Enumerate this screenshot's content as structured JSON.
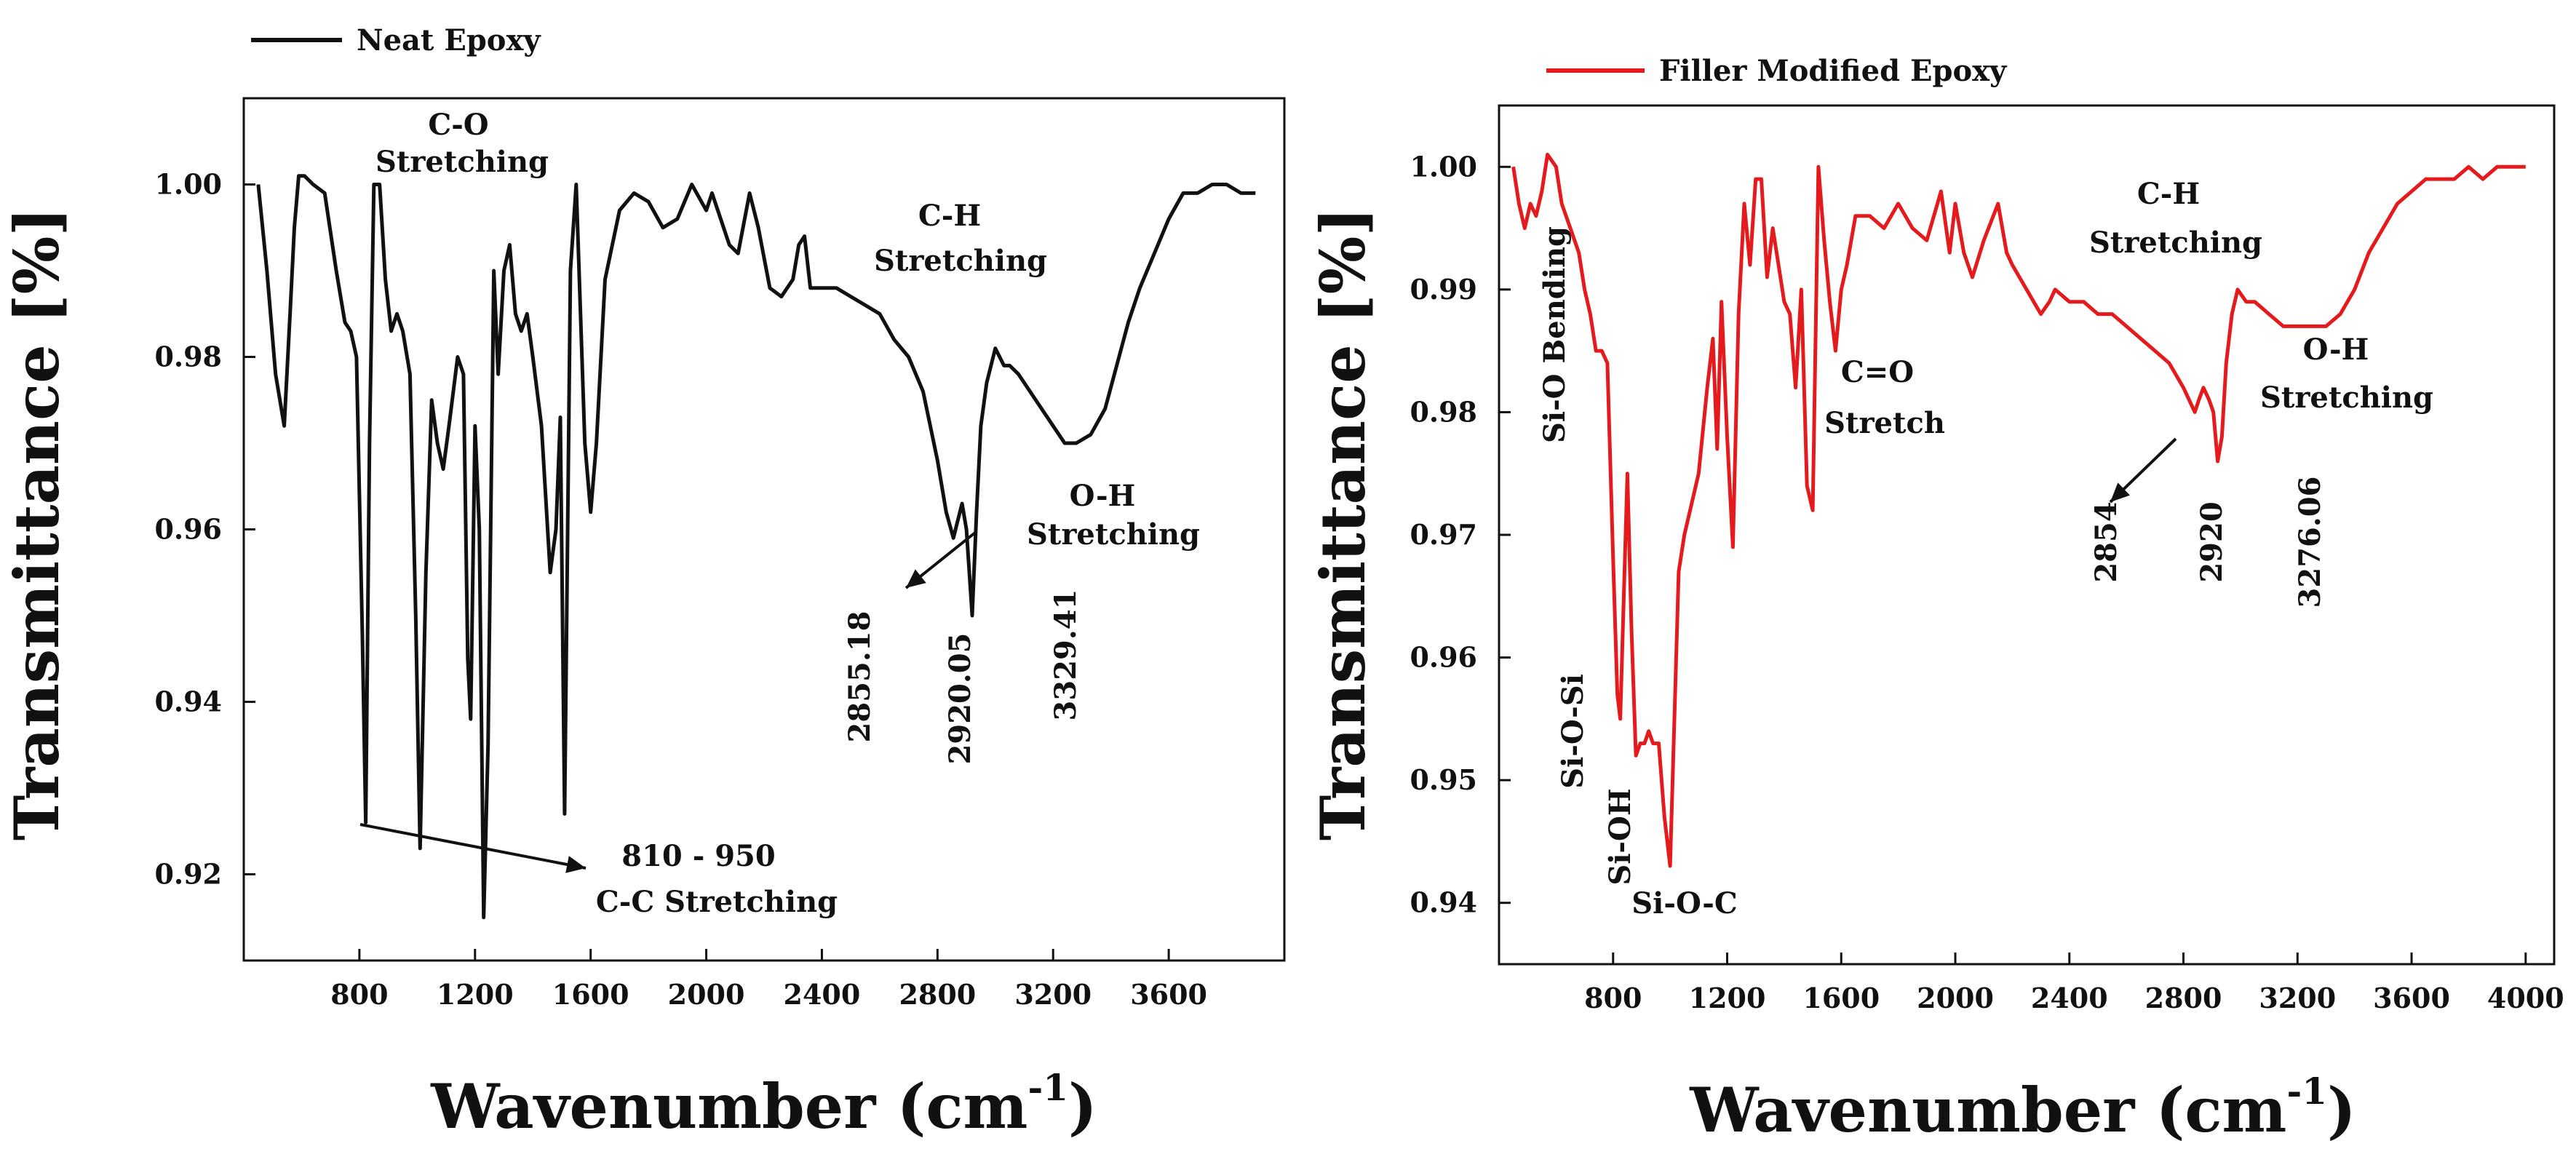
{
  "chart_data": [
    {
      "type": "line",
      "title": "",
      "legend": "Neat Epoxy",
      "legend_position": "top-left",
      "color": "#111111",
      "xlabel_main": "Wavenumber (cm",
      "xlabel_sup": "-1",
      "xlabel_close": ")",
      "ylabel": "Transmittance [%]",
      "xlim": [
        400,
        4000
      ],
      "ylim": [
        0.91,
        1.01
      ],
      "xticks": [
        800,
        1200,
        1600,
        2000,
        2400,
        2800,
        3200,
        3600
      ],
      "xtick_labels": [
        "800",
        "1200",
        "1600",
        "2000",
        "2400",
        "2800",
        "3200",
        "3600"
      ],
      "yticks": [
        0.92,
        0.94,
        0.96,
        0.98,
        1.0
      ],
      "ytick_labels": [
        "0.92",
        "0.94",
        "0.96",
        "0.98",
        "1.00"
      ],
      "x": [
        450,
        480,
        510,
        540,
        560,
        575,
        590,
        610,
        640,
        680,
        720,
        750,
        770,
        790,
        810,
        822,
        835,
        850,
        870,
        890,
        910,
        930,
        950,
        975,
        995,
        1010,
        1030,
        1050,
        1070,
        1090,
        1110,
        1140,
        1160,
        1175,
        1185,
        1200,
        1215,
        1230,
        1245,
        1265,
        1280,
        1300,
        1320,
        1340,
        1360,
        1380,
        1400,
        1430,
        1460,
        1480,
        1495,
        1510,
        1530,
        1550,
        1580,
        1600,
        1620,
        1650,
        1700,
        1750,
        1800,
        1850,
        1900,
        1950,
        2000,
        2020,
        2050,
        2080,
        2110,
        2150,
        2180,
        2220,
        2260,
        2300,
        2320,
        2340,
        2360,
        2380,
        2400,
        2450,
        2500,
        2550,
        2600,
        2650,
        2700,
        2750,
        2800,
        2830,
        2855,
        2870,
        2885,
        2900,
        2920,
        2935,
        2950,
        2970,
        3000,
        3030,
        3050,
        3080,
        3120,
        3160,
        3200,
        3240,
        3280,
        3330,
        3380,
        3420,
        3460,
        3500,
        3550,
        3600,
        3650,
        3700,
        3750,
        3800,
        3850,
        3900
      ],
      "values": [
        1.0,
        0.99,
        0.978,
        0.972,
        0.985,
        0.995,
        1.001,
        1.001,
        1.0,
        0.999,
        0.99,
        0.984,
        0.983,
        0.98,
        0.948,
        0.926,
        0.97,
        1.0,
        1.0,
        0.989,
        0.983,
        0.985,
        0.983,
        0.978,
        0.95,
        0.923,
        0.955,
        0.975,
        0.97,
        0.967,
        0.972,
        0.98,
        0.978,
        0.945,
        0.938,
        0.972,
        0.96,
        0.915,
        0.935,
        0.99,
        0.978,
        0.99,
        0.993,
        0.985,
        0.983,
        0.985,
        0.98,
        0.972,
        0.955,
        0.96,
        0.973,
        0.927,
        0.99,
        1.0,
        0.97,
        0.962,
        0.97,
        0.989,
        0.997,
        0.999,
        0.998,
        0.995,
        0.996,
        1.0,
        0.997,
        0.999,
        0.996,
        0.993,
        0.992,
        0.999,
        0.995,
        0.988,
        0.987,
        0.989,
        0.993,
        0.994,
        0.988,
        0.988,
        0.988,
        0.988,
        0.987,
        0.986,
        0.985,
        0.982,
        0.98,
        0.976,
        0.968,
        0.962,
        0.959,
        0.961,
        0.963,
        0.96,
        0.95,
        0.962,
        0.972,
        0.977,
        0.981,
        0.979,
        0.979,
        0.978,
        0.976,
        0.974,
        0.972,
        0.97,
        0.97,
        0.971,
        0.974,
        0.979,
        0.984,
        0.988,
        0.992,
        0.996,
        0.999,
        0.999,
        1.0,
        1.0,
        0.999,
        0.999
      ],
      "annotations": [
        {
          "text": "C-O",
          "x": 2800,
          "y": 1.011
        },
        {
          "text": "Stretching",
          "x": 2800,
          "y": 1.004
        },
        {
          "text": "C-H",
          "x": 2800,
          "y": 0.997
        },
        {
          "text": "Stretching",
          "x": 2800,
          "y": 0.99
        },
        {
          "text": "O-H",
          "x": 2800,
          "y": 0.983
        },
        {
          "text": "Stretching",
          "x": 2800,
          "y": 0.976
        },
        {
          "text": "810 - 950",
          "x": 2800,
          "y": 0.969
        },
        {
          "text": "C-C Stretching",
          "x": 2800,
          "y": 0.962
        },
        {
          "text": "2855.18",
          "x": 2800,
          "y": 0.955
        },
        {
          "text": "2920.05",
          "x": 2800,
          "y": 0.948
        },
        {
          "text": "3329.41",
          "x": 2800,
          "y": 0.941
        }
      ]
    },
    {
      "type": "line",
      "title": "",
      "legend": "Filler Modified Epoxy",
      "legend_position": "top-left",
      "color": "#e41a1c",
      "xlabel_main": "Wavenumber (cm",
      "xlabel_sup": "-1",
      "xlabel_close": ")",
      "ylabel": "Transmittance [%]",
      "xlim": [
        400,
        4100
      ],
      "ylim": [
        0.935,
        1.005
      ],
      "xticks": [
        800,
        1200,
        1600,
        2000,
        2400,
        2800,
        3200,
        3600,
        4000
      ],
      "xtick_labels": [
        "800",
        "1200",
        "1600",
        "2000",
        "2400",
        "2800",
        "3200",
        "3600",
        "4000"
      ],
      "yticks": [
        0.94,
        0.95,
        0.96,
        0.97,
        0.98,
        0.99,
        1.0
      ],
      "ytick_labels": [
        "0.94",
        "0.95",
        "0.96",
        "0.97",
        "0.98",
        "0.99",
        "1.00"
      ],
      "x": [
        450,
        470,
        490,
        510,
        530,
        550,
        570,
        600,
        620,
        650,
        680,
        700,
        720,
        740,
        760,
        780,
        800,
        815,
        825,
        835,
        850,
        865,
        880,
        895,
        910,
        925,
        940,
        960,
        980,
        1000,
        1015,
        1030,
        1050,
        1070,
        1100,
        1130,
        1150,
        1165,
        1180,
        1200,
        1220,
        1240,
        1260,
        1280,
        1300,
        1320,
        1340,
        1360,
        1380,
        1400,
        1420,
        1440,
        1460,
        1480,
        1500,
        1520,
        1540,
        1560,
        1580,
        1600,
        1620,
        1650,
        1700,
        1750,
        1800,
        1850,
        1900,
        1950,
        1980,
        2000,
        2030,
        2060,
        2100,
        2150,
        2180,
        2200,
        2250,
        2300,
        2330,
        2350,
        2400,
        2450,
        2500,
        2550,
        2600,
        2650,
        2700,
        2750,
        2800,
        2840,
        2854,
        2870,
        2890,
        2905,
        2920,
        2935,
        2950,
        2970,
        2990,
        3020,
        3050,
        3100,
        3150,
        3200,
        3250,
        3276,
        3300,
        3350,
        3400,
        3450,
        3500,
        3550,
        3600,
        3650,
        3700,
        3750,
        3800,
        3850,
        3900,
        3950,
        4000
      ],
      "values": [
        1.0,
        0.997,
        0.995,
        0.997,
        0.996,
        0.998,
        1.001,
        1.0,
        0.997,
        0.995,
        0.993,
        0.99,
        0.988,
        0.985,
        0.985,
        0.984,
        0.968,
        0.957,
        0.955,
        0.963,
        0.975,
        0.962,
        0.952,
        0.953,
        0.953,
        0.954,
        0.953,
        0.953,
        0.947,
        0.943,
        0.955,
        0.967,
        0.97,
        0.972,
        0.975,
        0.982,
        0.986,
        0.977,
        0.989,
        0.978,
        0.969,
        0.988,
        0.997,
        0.992,
        0.999,
        0.999,
        0.991,
        0.995,
        0.992,
        0.989,
        0.988,
        0.982,
        0.99,
        0.974,
        0.972,
        1.0,
        0.994,
        0.989,
        0.985,
        0.99,
        0.992,
        0.996,
        0.996,
        0.995,
        0.997,
        0.995,
        0.994,
        0.998,
        0.993,
        0.997,
        0.993,
        0.991,
        0.994,
        0.997,
        0.993,
        0.992,
        0.99,
        0.988,
        0.989,
        0.99,
        0.989,
        0.989,
        0.988,
        0.988,
        0.987,
        0.986,
        0.985,
        0.984,
        0.982,
        0.98,
        0.981,
        0.982,
        0.981,
        0.98,
        0.976,
        0.978,
        0.984,
        0.988,
        0.99,
        0.989,
        0.989,
        0.988,
        0.987,
        0.987,
        0.987,
        0.987,
        0.987,
        0.988,
        0.99,
        0.993,
        0.995,
        0.997,
        0.998,
        0.999,
        0.999,
        0.999,
        1.0,
        0.999,
        1.0,
        1.0,
        1.0
      ],
      "annotations": [
        {
          "text": "C-H",
          "x": 2800,
          "y": 1.011
        },
        {
          "text": "Stretching",
          "x": 2800,
          "y": 1.004
        },
        {
          "text": "O-H",
          "x": 2800,
          "y": 0.997
        },
        {
          "text": "Stretching",
          "x": 2800,
          "y": 0.99
        },
        {
          "text": "C=O",
          "x": 2800,
          "y": 0.983
        },
        {
          "text": "Stretch",
          "x": 2800,
          "y": 0.976
        },
        {
          "text": "Si-O Bending",
          "x": 2800,
          "y": 0.969
        },
        {
          "text": "Si-O-Si",
          "x": 2800,
          "y": 0.962
        },
        {
          "text": "Si-OH",
          "x": 2800,
          "y": 0.955
        },
        {
          "text": "Si-O-C",
          "x": 2800,
          "y": 0.948
        },
        {
          "text": "2854",
          "x": 2800,
          "y": 0.941
        },
        {
          "text": "2920",
          "x": 2800,
          "y": 0.934
        },
        {
          "text": "3276.06",
          "x": 2800,
          "y": 0.927
        }
      ]
    }
  ]
}
